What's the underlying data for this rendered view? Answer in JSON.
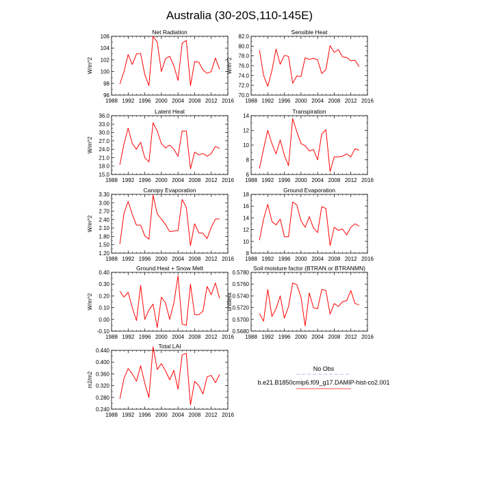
{
  "page_title": "Australia (30-20S,110-145E)",
  "legend": {
    "entries": [
      {
        "label": "No Obs",
        "color": "#b4b4e6",
        "dashed": true
      },
      {
        "label": "b.e21.B1850cmip6.f09_g17.DAMIP-hist-co2.001",
        "color": "#ff4d4d",
        "dashed": false
      }
    ]
  },
  "chart_data": [
    {
      "type": "line",
      "title": "Net Radiation",
      "ylabel": "W/m^2",
      "xlim": [
        1988,
        2016
      ],
      "xticks": [
        1988,
        1992,
        1996,
        2000,
        2004,
        2008,
        2012,
        2016
      ],
      "ylim": [
        96,
        106
      ],
      "yticks": [
        96,
        98,
        100,
        102,
        104,
        106
      ],
      "ydec": 0,
      "x": [
        1990,
        1991,
        1992,
        1993,
        1994,
        1995,
        1996,
        1997,
        1998,
        1999,
        2000,
        2001,
        2002,
        2003,
        2004,
        2005,
        2006,
        2007,
        2008,
        2009,
        2010,
        2011,
        2012,
        2013,
        2014
      ],
      "series": [
        {
          "color": "#ff0000",
          "values": [
            97.9,
            100.0,
            102.9,
            101.2,
            103.0,
            103.1,
            99.5,
            97.6,
            106.0,
            105.0,
            100.0,
            102.2,
            102.6,
            101.0,
            98.5,
            104.8,
            105.3,
            97.6,
            101.7,
            101.6,
            100.3,
            99.7,
            100.0,
            102.3,
            100.4
          ]
        }
      ]
    },
    {
      "type": "line",
      "title": "Sensible Heat",
      "ylabel": "W/m^2",
      "xlim": [
        1988,
        2016
      ],
      "xticks": [
        1988,
        1992,
        1996,
        2000,
        2004,
        2008,
        2012,
        2016
      ],
      "ylim": [
        70,
        82
      ],
      "yticks": [
        70,
        72,
        74,
        76,
        78,
        80,
        82
      ],
      "ydec": 1,
      "x": [
        1990,
        1991,
        1992,
        1993,
        1994,
        1995,
        1996,
        1997,
        1998,
        1999,
        2000,
        2001,
        2002,
        2003,
        2004,
        2005,
        2006,
        2007,
        2008,
        2009,
        2010,
        2011,
        2012,
        2013,
        2014
      ],
      "series": [
        {
          "color": "#ff0000",
          "values": [
            79.2,
            74.0,
            71.8,
            75.0,
            79.4,
            76.3,
            78.1,
            77.9,
            72.4,
            73.9,
            73.8,
            77.6,
            77.3,
            77.5,
            77.2,
            74.4,
            75.2,
            80.1,
            78.7,
            79.3,
            77.8,
            77.7,
            77.0,
            77.1,
            75.8
          ]
        }
      ]
    },
    {
      "type": "line",
      "title": "Latent Heat",
      "ylabel": "W/m^2",
      "xlim": [
        1988,
        2016
      ],
      "xticks": [
        1988,
        1992,
        1996,
        2000,
        2004,
        2008,
        2012,
        2016
      ],
      "ylim": [
        15,
        36
      ],
      "yticks": [
        15,
        18,
        21,
        24,
        27,
        30,
        33,
        36
      ],
      "ydec": 1,
      "x": [
        1990,
        1991,
        1992,
        1993,
        1994,
        1995,
        1996,
        1997,
        1998,
        1999,
        2000,
        2001,
        2002,
        2003,
        2004,
        2005,
        2006,
        2007,
        2008,
        2009,
        2010,
        2011,
        2012,
        2013,
        2014
      ],
      "series": [
        {
          "color": "#ff0000",
          "values": [
            18.5,
            26.0,
            31.5,
            26.0,
            24.0,
            26.5,
            21.0,
            19.5,
            33.5,
            30.5,
            26.0,
            24.5,
            25.5,
            24.0,
            21.5,
            30.5,
            30.5,
            17.0,
            23.0,
            22.0,
            22.5,
            21.5,
            22.5,
            25.0,
            24.3
          ]
        }
      ]
    },
    {
      "type": "line",
      "title": "Transpiration",
      "ylabel": "",
      "xlim": [
        1988,
        2016
      ],
      "xticks": [
        1988,
        1992,
        1996,
        2000,
        2004,
        2008,
        2012,
        2016
      ],
      "ylim": [
        6,
        14
      ],
      "yticks": [
        6,
        8,
        10,
        12,
        14
      ],
      "ydec": 0,
      "x": [
        1990,
        1991,
        1992,
        1993,
        1994,
        1995,
        1996,
        1997,
        1998,
        1999,
        2000,
        2001,
        2002,
        2003,
        2004,
        2005,
        2006,
        2007,
        2008,
        2009,
        2010,
        2011,
        2012,
        2013,
        2014
      ],
      "series": [
        {
          "color": "#ff0000",
          "values": [
            6.8,
            9.5,
            12.0,
            10.2,
            8.8,
            10.7,
            8.6,
            7.2,
            13.6,
            11.8,
            10.2,
            9.9,
            9.2,
            9.4,
            8.0,
            11.5,
            12.1,
            6.4,
            8.4,
            8.4,
            8.5,
            8.8,
            8.4,
            9.5,
            9.3
          ]
        }
      ]
    },
    {
      "type": "line",
      "title": "Canopy Evaporation",
      "ylabel": "W/m^2",
      "xlim": [
        1988,
        2016
      ],
      "xticks": [
        1988,
        1992,
        1996,
        2000,
        2004,
        2008,
        2012,
        2016
      ],
      "ylim": [
        1.2,
        3.3
      ],
      "yticks": [
        1.2,
        1.5,
        1.8,
        2.1,
        2.4,
        2.7,
        3.0,
        3.3
      ],
      "ydec": 2,
      "x": [
        1990,
        1991,
        1992,
        1993,
        1994,
        1995,
        1996,
        1997,
        1998,
        1999,
        2000,
        2001,
        2002,
        2003,
        2004,
        2005,
        2006,
        2007,
        2008,
        2009,
        2010,
        2011,
        2012,
        2013,
        2014
      ],
      "series": [
        {
          "color": "#ff0000",
          "values": [
            1.53,
            2.62,
            3.05,
            2.58,
            2.2,
            2.2,
            1.82,
            1.7,
            3.27,
            2.6,
            2.42,
            2.22,
            1.97,
            1.99,
            2.01,
            3.12,
            2.83,
            1.47,
            2.25,
            1.93,
            1.91,
            1.72,
            2.12,
            2.42,
            2.42
          ]
        }
      ]
    },
    {
      "type": "line",
      "title": "Ground Evaporation",
      "ylabel": "",
      "xlim": [
        1988,
        2016
      ],
      "xticks": [
        1988,
        1992,
        1996,
        2000,
        2004,
        2008,
        2012,
        2016
      ],
      "ylim": [
        8,
        18
      ],
      "yticks": [
        8,
        10,
        12,
        14,
        16,
        18
      ],
      "ydec": 0,
      "x": [
        1990,
        1991,
        1992,
        1993,
        1994,
        1995,
        1996,
        1997,
        1998,
        1999,
        2000,
        2001,
        2002,
        2003,
        2004,
        2005,
        2006,
        2007,
        2008,
        2009,
        2010,
        2011,
        2012,
        2013,
        2014
      ],
      "series": [
        {
          "color": "#ff0000",
          "values": [
            10.2,
            13.8,
            16.3,
            13.4,
            12.8,
            13.8,
            10.8,
            10.8,
            16.7,
            16.2,
            13.5,
            12.4,
            14.2,
            12.3,
            11.5,
            15.9,
            15.6,
            9.3,
            12.4,
            11.9,
            12.1,
            11.1,
            12.4,
            13.0,
            12.6
          ]
        }
      ]
    },
    {
      "type": "line",
      "title": "Ground Heat + Snow Melt",
      "ylabel": "W/m^2",
      "xlim": [
        1988,
        2016
      ],
      "xticks": [
        1988,
        1992,
        1996,
        2000,
        2004,
        2008,
        2012,
        2016
      ],
      "ylim": [
        -0.1,
        0.4
      ],
      "yticks": [
        -0.1,
        0.0,
        0.1,
        0.2,
        0.3,
        0.4
      ],
      "ydec": 2,
      "x": [
        1990,
        1991,
        1992,
        1993,
        1994,
        1995,
        1996,
        1997,
        1998,
        1999,
        2000,
        2001,
        2002,
        2003,
        2004,
        2005,
        2006,
        2007,
        2008,
        2009,
        2010,
        2011,
        2012,
        2013,
        2014
      ],
      "series": [
        {
          "color": "#ff0000",
          "values": [
            0.24,
            0.19,
            0.23,
            0.1,
            -0.01,
            0.29,
            0.0,
            0.08,
            0.13,
            -0.07,
            0.19,
            0.14,
            0.0,
            0.14,
            0.37,
            -0.04,
            -0.05,
            0.3,
            0.04,
            0.04,
            0.07,
            0.28,
            0.21,
            0.31,
            0.18
          ]
        }
      ]
    },
    {
      "type": "line",
      "title": "Soil moisture factor (BTRAN or BTRANMN)",
      "ylabel": "unitless",
      "xlim": [
        1988,
        2016
      ],
      "xticks": [
        1988,
        1992,
        1996,
        2000,
        2004,
        2008,
        2012,
        2016
      ],
      "ylim": [
        0.568,
        0.578
      ],
      "yticks": [
        0.568,
        0.57,
        0.572,
        0.574,
        0.576,
        0.578
      ],
      "ydec": 4,
      "x": [
        1990,
        1991,
        1992,
        1993,
        1994,
        1995,
        1996,
        1997,
        1998,
        1999,
        2000,
        2001,
        2002,
        2003,
        2004,
        2005,
        2006,
        2007,
        2008,
        2009,
        2010,
        2011,
        2012,
        2013,
        2014
      ],
      "series": [
        {
          "color": "#ff0000",
          "values": [
            0.571,
            0.5697,
            0.5751,
            0.5705,
            0.5718,
            0.574,
            0.5702,
            0.5722,
            0.5762,
            0.5759,
            0.5738,
            0.5689,
            0.5745,
            0.572,
            0.5718,
            0.5751,
            0.5749,
            0.5709,
            0.5727,
            0.5722,
            0.573,
            0.5732,
            0.5749,
            0.5727,
            0.5725
          ]
        }
      ]
    },
    {
      "type": "line",
      "title": "Total LAI",
      "ylabel": "m2/m2",
      "xlim": [
        1988,
        2016
      ],
      "xticks": [
        1988,
        1992,
        1996,
        2000,
        2004,
        2008,
        2012,
        2016
      ],
      "ylim": [
        0.24,
        0.44
      ],
      "yticks": [
        0.24,
        0.28,
        0.32,
        0.36,
        0.4,
        0.44
      ],
      "ydec": 3,
      "x": [
        1990,
        1991,
        1992,
        1993,
        1994,
        1995,
        1996,
        1997,
        1998,
        1999,
        2000,
        2001,
        2002,
        2003,
        2004,
        2005,
        2006,
        2007,
        2008,
        2009,
        2010,
        2011,
        2012,
        2013,
        2014
      ],
      "series": [
        {
          "color": "#ff0000",
          "values": [
            0.275,
            0.345,
            0.378,
            0.36,
            0.335,
            0.388,
            0.328,
            0.28,
            0.452,
            0.375,
            0.395,
            0.37,
            0.34,
            0.372,
            0.308,
            0.425,
            0.43,
            0.255,
            0.335,
            0.32,
            0.292,
            0.35,
            0.355,
            0.33,
            0.358
          ]
        }
      ]
    }
  ]
}
